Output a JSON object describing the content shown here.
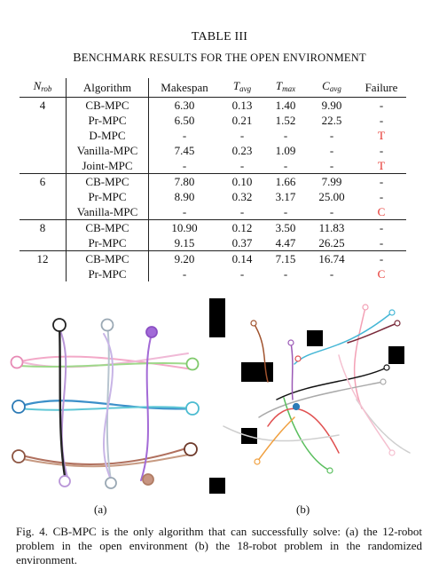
{
  "table": {
    "title": "TABLE III",
    "subtitle_first_letter": "B",
    "subtitle_rest": "ENCHMARK RESULTS FOR THE OPEN ENVIRONMENT",
    "headers": {
      "n_rob_main": "N",
      "n_rob_sub": "rob",
      "algorithm": "Algorithm",
      "makespan": "Makespan",
      "t_avg_main": "T",
      "t_avg_sub": "avg",
      "t_max_main": "T",
      "t_max_sub": "max",
      "c_avg_main": "C",
      "c_avg_sub": "avg",
      "failure": "Failure"
    },
    "rows": [
      {
        "n": "4",
        "alg": "CB-MPC",
        "makespan": "6.30",
        "tavg": "0.13",
        "tmax": "1.40",
        "cavg": "9.90",
        "failure": "-",
        "bold": true,
        "group_start": true
      },
      {
        "n": "",
        "alg": "Pr-MPC",
        "makespan": "6.50",
        "tavg": "0.21",
        "tmax": "1.52",
        "cavg": "22.5",
        "failure": "-",
        "bold": false,
        "group_start": false
      },
      {
        "n": "",
        "alg": "D-MPC",
        "makespan": "-",
        "tavg": "-",
        "tmax": "-",
        "cavg": "-",
        "failure": "T",
        "bold": false,
        "group_start": false
      },
      {
        "n": "",
        "alg": "Vanilla-MPC",
        "makespan": "7.45",
        "tavg": "0.23",
        "tmax": "1.09",
        "cavg": "-",
        "failure": "-",
        "bold": false,
        "group_start": false
      },
      {
        "n": "",
        "alg": "Joint-MPC",
        "makespan": "-",
        "tavg": "-",
        "tmax": "-",
        "cavg": "-",
        "failure": "T",
        "bold": false,
        "group_start": false
      },
      {
        "n": "6",
        "alg": "CB-MPC",
        "makespan": "7.80",
        "tavg": "0.10",
        "tmax": "1.66",
        "cavg": "7.99",
        "failure": "-",
        "bold": true,
        "group_start": true
      },
      {
        "n": "",
        "alg": "Pr-MPC",
        "makespan": "8.90",
        "tavg": "0.32",
        "tmax": "3.17",
        "cavg": "25.00",
        "failure": "-",
        "bold": false,
        "group_start": false
      },
      {
        "n": "",
        "alg": "Vanilla-MPC",
        "makespan": "-",
        "tavg": "-",
        "tmax": "-",
        "cavg": "-",
        "failure": "C",
        "bold": false,
        "group_start": false
      },
      {
        "n": "8",
        "alg": "CB-MPC",
        "makespan": "10.90",
        "tavg": "0.12",
        "tmax": "3.50",
        "cavg": "11.83",
        "failure": "-",
        "bold": "partial",
        "group_start": true
      },
      {
        "n": "",
        "alg": "Pr-MPC",
        "makespan": "9.15",
        "tavg": "0.37",
        "tmax": "4.47",
        "cavg": "26.25",
        "failure": "-",
        "bold": "makespan",
        "group_start": false
      },
      {
        "n": "12",
        "alg": "CB-MPC",
        "makespan": "9.20",
        "tavg": "0.14",
        "tmax": "7.15",
        "cavg": "16.74",
        "failure": "-",
        "bold": true,
        "group_start": true
      },
      {
        "n": "",
        "alg": "Pr-MPC",
        "makespan": "-",
        "tavg": "-",
        "tmax": "-",
        "cavg": "-",
        "failure": "C",
        "bold": false,
        "group_start": false
      }
    ]
  },
  "figures": {
    "label_a": "(a)",
    "label_b": "(b)"
  },
  "caption": "Fig. 4.   CB-MPC is the only algorithm that can successfully solve: (a) the 12-robot problem in the open environment (b) the 18-robot problem in the randomized environment.",
  "colors": {
    "failure_red": "#e5302a",
    "black": "#111111"
  }
}
